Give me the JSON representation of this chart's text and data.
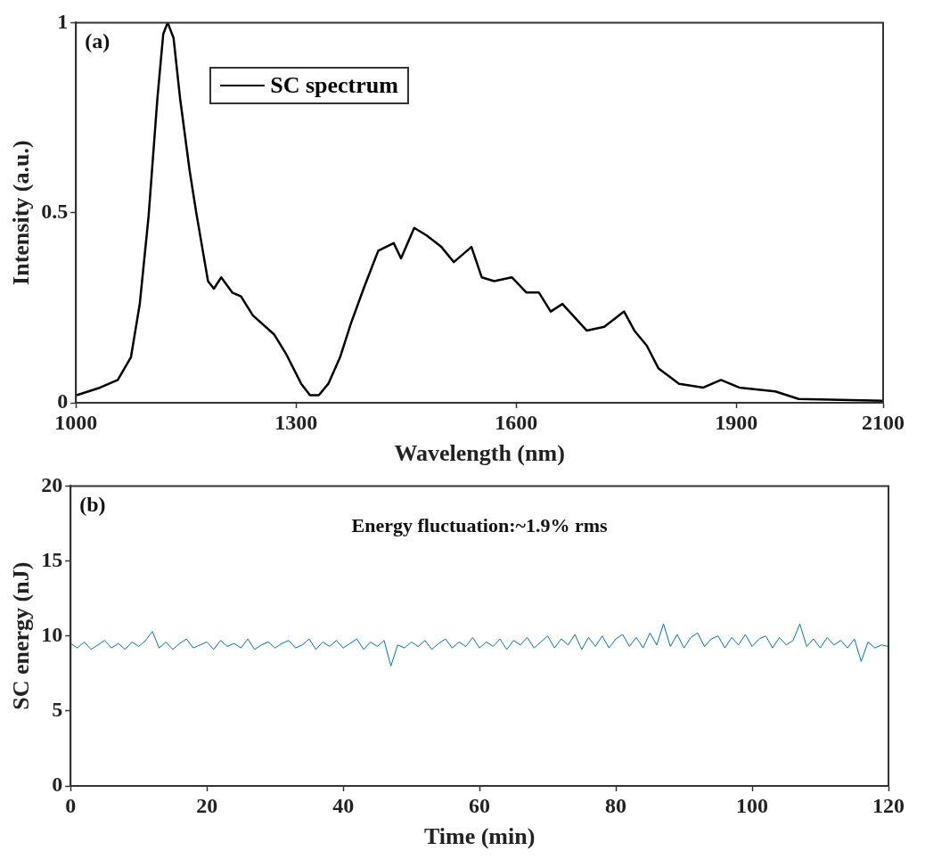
{
  "chart_data": [
    {
      "type": "line",
      "xlabel": "Wavelength (nm)",
      "ylabel": "Intensity (a.u.)",
      "xlim": [
        1000,
        2100
      ],
      "xticks": [
        1000,
        1300,
        1600,
        1900,
        2100
      ],
      "ylim": [
        0,
        1
      ],
      "yticks": [
        0,
        0.5,
        1
      ],
      "grid": false,
      "legend": "top left",
      "marker": "none",
      "line_style": "solid",
      "annotations": [
        "(a)"
      ],
      "series": [
        {
          "name": "SC spectrum",
          "color": "#000000",
          "x": [
            1001,
            1033,
            1057,
            1075,
            1087,
            1099,
            1111,
            1119,
            1125,
            1133,
            1142,
            1155,
            1164,
            1172,
            1180,
            1188,
            1198,
            1213,
            1225,
            1241,
            1270,
            1286,
            1307,
            1319,
            1331,
            1344,
            1360,
            1375,
            1392,
            1412,
            1433,
            1443,
            1461,
            1478,
            1498,
            1515,
            1539,
            1553,
            1570,
            1594,
            1614,
            1631,
            1647,
            1663,
            1696,
            1720,
            1747,
            1761,
            1778,
            1794,
            1822,
            1855,
            1879,
            1904,
            1953,
            1985,
            2099
          ],
          "values": [
            0.02,
            0.04,
            0.06,
            0.12,
            0.26,
            0.49,
            0.8,
            0.97,
            1.0,
            0.96,
            0.8,
            0.61,
            0.5,
            0.41,
            0.32,
            0.3,
            0.33,
            0.29,
            0.28,
            0.23,
            0.18,
            0.13,
            0.05,
            0.02,
            0.02,
            0.05,
            0.12,
            0.21,
            0.3,
            0.4,
            0.42,
            0.38,
            0.46,
            0.44,
            0.41,
            0.37,
            0.41,
            0.33,
            0.32,
            0.33,
            0.29,
            0.29,
            0.24,
            0.26,
            0.19,
            0.2,
            0.24,
            0.19,
            0.15,
            0.09,
            0.05,
            0.04,
            0.06,
            0.04,
            0.03,
            0.01,
            0.005
          ]
        }
      ]
    },
    {
      "type": "line",
      "xlabel": "Time (min)",
      "ylabel": "SC energy (nJ)",
      "xlim": [
        0,
        120
      ],
      "xticks": [
        0,
        20,
        40,
        60,
        80,
        100,
        120
      ],
      "ylim": [
        0,
        20
      ],
      "yticks": [
        0,
        5,
        10,
        15,
        20
      ],
      "grid": false,
      "legend": false,
      "marker": "none",
      "line_style": "solid",
      "annotations": [
        "(b)",
        "Energy fluctuation:~1.9% rms"
      ],
      "series": [
        {
          "color": "#0072bd",
          "x": [
            0,
            1,
            2,
            3,
            4,
            5,
            6,
            7,
            8,
            9,
            10,
            11,
            12,
            13,
            14,
            15,
            16,
            17,
            18,
            19,
            20,
            21,
            22,
            23,
            24,
            25,
            26,
            27,
            28,
            29,
            30,
            31,
            32,
            33,
            34,
            35,
            36,
            37,
            38,
            39,
            40,
            41,
            42,
            43,
            44,
            45,
            46,
            47,
            48,
            49,
            50,
            51,
            52,
            53,
            54,
            55,
            56,
            57,
            58,
            59,
            60,
            61,
            62,
            63,
            64,
            65,
            66,
            67,
            68,
            69,
            70,
            71,
            72,
            73,
            74,
            75,
            76,
            77,
            78,
            79,
            80,
            81,
            82,
            83,
            84,
            85,
            86,
            87,
            88,
            89,
            90,
            91,
            92,
            93,
            94,
            95,
            96,
            97,
            98,
            99,
            100,
            101,
            102,
            103,
            104,
            105,
            106,
            107,
            108,
            109,
            110,
            111,
            112,
            113,
            114,
            115,
            116,
            117,
            118,
            119,
            120
          ],
          "values": [
            9.5,
            9.2,
            9.6,
            9.1,
            9.4,
            9.7,
            9.2,
            9.5,
            9.1,
            9.6,
            9.3,
            9.7,
            10.3,
            9.2,
            9.6,
            9.1,
            9.5,
            9.8,
            9.2,
            9.4,
            9.6,
            9.1,
            9.7,
            9.3,
            9.5,
            9.2,
            9.8,
            9.1,
            9.4,
            9.6,
            9.2,
            9.5,
            9.7,
            9.2,
            9.4,
            9.8,
            9.1,
            9.6,
            9.3,
            9.7,
            9.2,
            9.5,
            9.8,
            9.1,
            9.6,
            9.3,
            9.7,
            8.0,
            9.4,
            9.2,
            9.6,
            9.3,
            9.7,
            9.1,
            9.5,
            9.8,
            9.2,
            9.6,
            9.3,
            9.9,
            9.2,
            9.6,
            9.3,
            9.8,
            9.1,
            9.7,
            9.4,
            9.9,
            9.2,
            9.6,
            10.0,
            9.2,
            9.8,
            9.4,
            10.1,
            9.1,
            9.9,
            9.3,
            10.0,
            9.2,
            9.8,
            10.1,
            9.3,
            9.9,
            9.2,
            10.2,
            9.4,
            10.8,
            9.3,
            10.1,
            9.2,
            9.9,
            10.2,
            9.3,
            9.8,
            10.0,
            9.2,
            9.9,
            9.4,
            10.1,
            9.3,
            9.8,
            10.0,
            9.2,
            9.9,
            9.4,
            9.7,
            10.8,
            9.3,
            9.8,
            9.2,
            9.9,
            9.4,
            9.7,
            9.2,
            9.8,
            8.3,
            9.6,
            9.2,
            9.4,
            9.3
          ]
        }
      ]
    }
  ]
}
